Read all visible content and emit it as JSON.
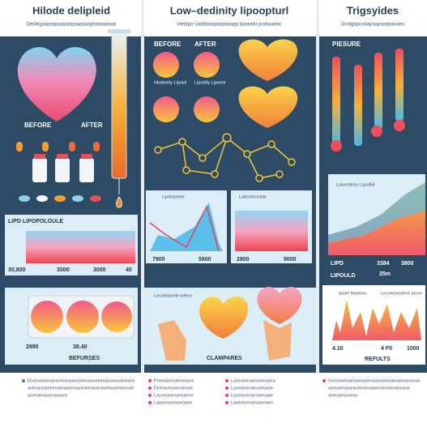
{
  "columns": [
    {
      "title": "Hilode delipleid",
      "subtitle": "Dedlegaapaapaapaapaapaaaptaaaaaaaa",
      "labels": [
        "BEFORE",
        "AFTER"
      ],
      "chart_label": "LIPD LIPOPOLOULE",
      "axis": [
        "30,800",
        "3500",
        "3000",
        "40"
      ],
      "bottom_axis": [
        "2990",
        "38.40"
      ],
      "caption": "BEFURSES",
      "notes": [
        "Doeoaaoeoaeaoeoeaoeoaeeoaaoeaeoaooeooaoeaoe",
        "aoeoaoeaoeeoaeoaoeoaaoeaeoaoeoaoeoaoeaoeoae",
        "aoeoaeoaoeoaaoea"
      ]
    },
    {
      "title": "Low–dedinity lipoopturl",
      "subtitle": "Hedqar caddiaoapaapaaapp lpoaedo podiaaeon",
      "labels": [
        "BEFORE",
        "AFTER"
      ],
      "sub_labels": [
        "Hiodeeity Lipoiol",
        "Lipodity Lipenol"
      ],
      "chart_labels": [
        "Lipdepsiele",
        "Lalendeonisle"
      ],
      "axis": [
        "7900",
        "5800",
        "2800",
        "9000"
      ],
      "hand_labels": [
        "Lecoelaoeile lafeon"
      ],
      "caption": "CLAMPARES",
      "notes": [
        "Poeoaoeoaeoeaooe",
        "Etoeaoeoaeoaeoae",
        "Lacoeaoeoaeoaeoo",
        "Laipoeaoeaoeoaeo"
      ],
      "notes2": [
        "Laoeaoeoaeoaeoaoea",
        "Laoeaoeoaeoaeoaoe",
        "Laoeaoeoaeoaeoaae",
        "Laoeaoeoaeoaeoaee"
      ]
    },
    {
      "title": "Trigsyides",
      "subtitle": "Ocdigapcoaapaapaaapaoaeo",
      "bar_label": "PIESURE",
      "chart_label": "Lowredeny Lipodial",
      "axis": [
        "LIPD",
        "3384",
        "3800"
      ],
      "axis_label": "LIPOULD",
      "axis_unit": "25m",
      "legend": [
        "Ipaiel Hadaeo",
        "Lecoeoaodenti lasoe"
      ],
      "bottom_axis": [
        "4.10",
        "4 F0",
        "1000"
      ],
      "caption": "REFULTS",
      "notes": [
        "Soeoaoeoaeoaeoaoeoaeoaoeoaeoaeoaoeoae",
        "aoeoaeoaoeaoeoaeoaoeoaeoaeoaeoaoe",
        "aoeoaeoaoeao"
      ]
    }
  ]
}
